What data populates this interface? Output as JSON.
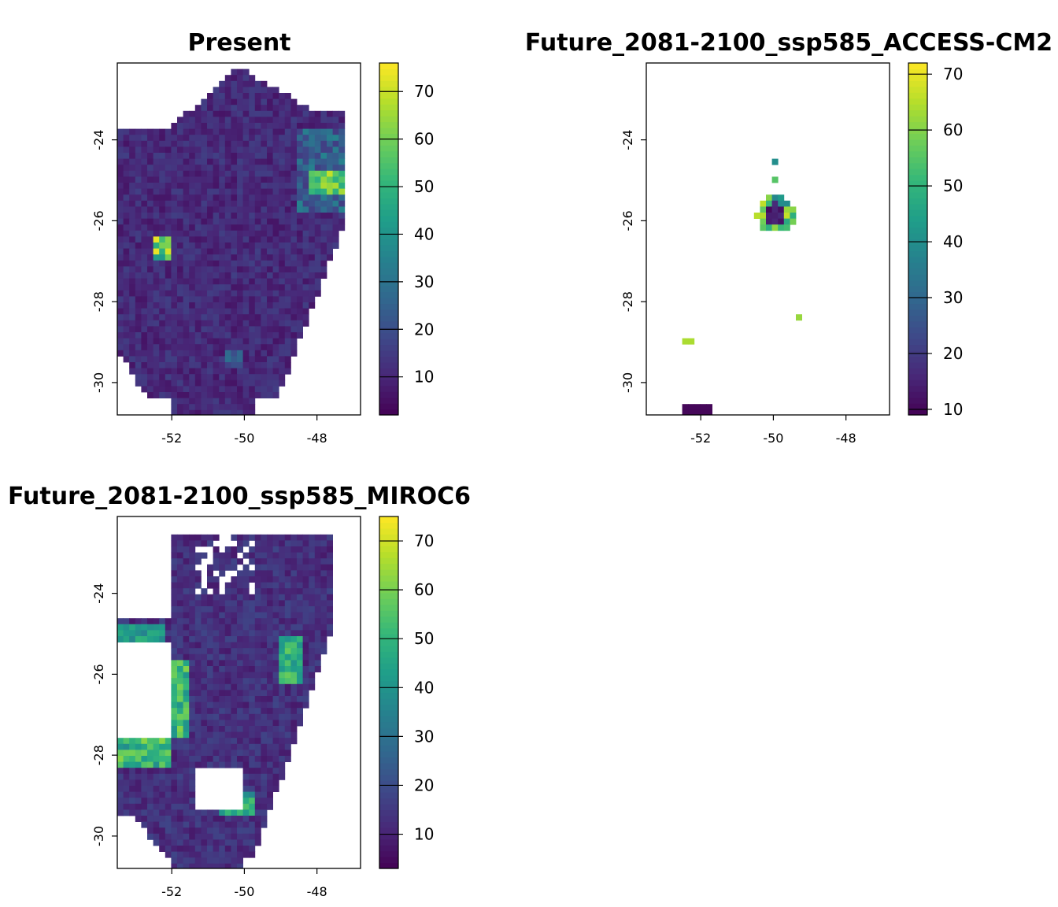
{
  "figure": {
    "panels": [
      {
        "id": "present",
        "title": "Present",
        "x_ticks": [
          -52,
          -50,
          -48
        ],
        "y_ticks": [
          -24,
          -26,
          -28,
          -30
        ],
        "xlim": [
          -53.5,
          -46.8
        ],
        "ylim": [
          -30.8,
          -22.1
        ],
        "legend_ticks": [
          10,
          20,
          30,
          40,
          50,
          60,
          70
        ],
        "legend_range": [
          2,
          76
        ]
      },
      {
        "id": "access",
        "title": "Future_2081-2100_ssp585_ACCESS-CM2",
        "x_ticks": [
          -52,
          -50,
          -48
        ],
        "y_ticks": [
          -24,
          -26,
          -28,
          -30
        ],
        "xlim": [
          -53.5,
          -46.8
        ],
        "ylim": [
          -30.8,
          -22.1
        ],
        "legend_ticks": [
          10,
          20,
          30,
          40,
          50,
          60,
          70
        ],
        "legend_range": [
          9,
          72
        ]
      },
      {
        "id": "miroc",
        "title": "Future_2081-2100_ssp585_MIROC6",
        "x_ticks": [
          -52,
          -50,
          -48
        ],
        "y_ticks": [
          -24,
          -26,
          -28,
          -30
        ],
        "xlim": [
          -53.5,
          -46.8
        ],
        "ylim": [
          -30.8,
          -22.1
        ],
        "legend_ticks": [
          10,
          20,
          30,
          40,
          50,
          60,
          70
        ],
        "legend_range": [
          3,
          75
        ]
      }
    ],
    "colormap": [
      "#440154",
      "#482878",
      "#3e4989",
      "#31688e",
      "#26828e",
      "#1f9e89",
      "#35b779",
      "#6ece58",
      "#b5de2b",
      "#fde725"
    ]
  }
}
